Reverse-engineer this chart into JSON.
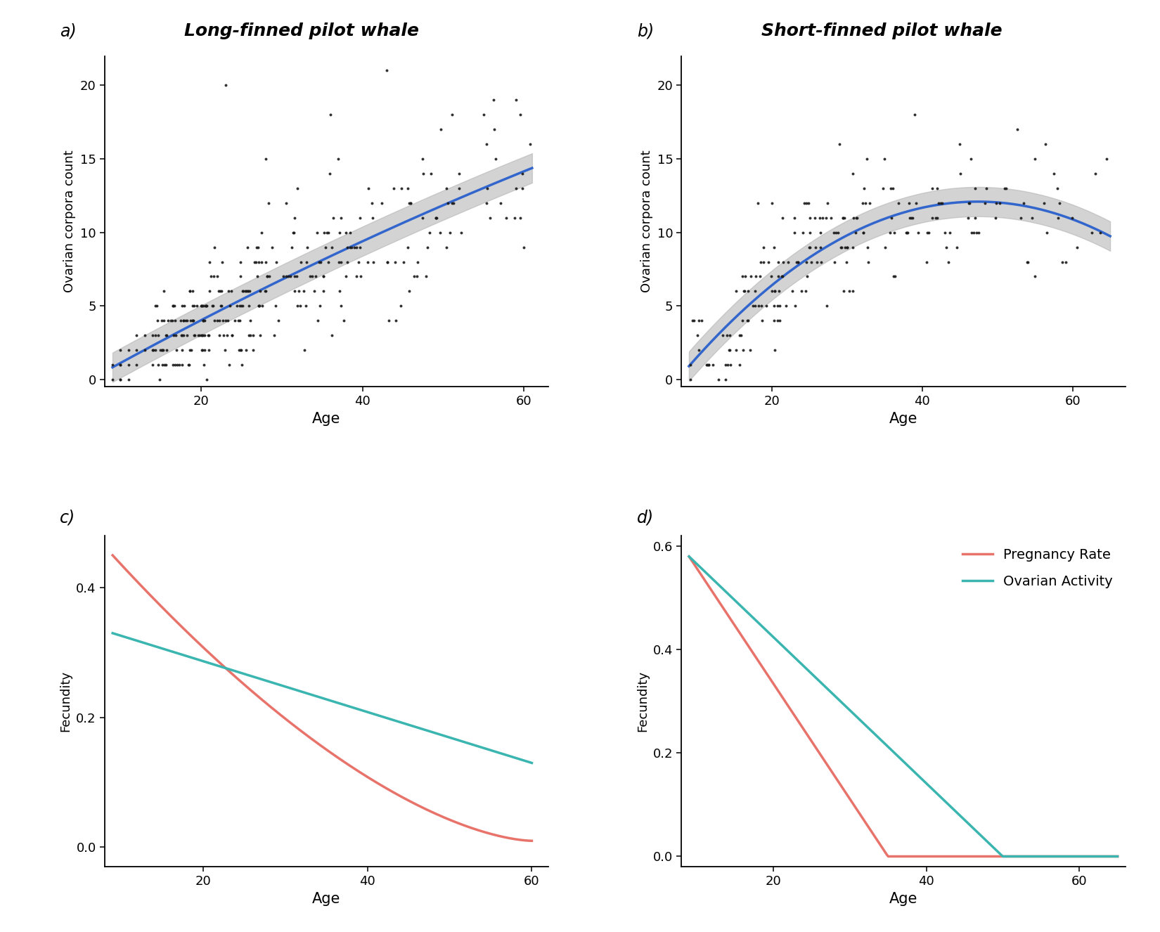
{
  "panel_a_title": "Long-finned pilot whale",
  "panel_b_title": "Short-finned pilot whale",
  "panel_a_label": "a)",
  "panel_b_label": "b)",
  "panel_c_label": "c)",
  "panel_d_label": "d)",
  "scatter_ylabel": "Ovarian corpora count",
  "scatter_xlabel": "Age",
  "fecundity_ylabel": "Fecundity",
  "fecundity_xlabel": "Age",
  "scatter_color": "#1a1a1a",
  "fit_color": "#3366cc",
  "ci_color": "#b0b0b0",
  "pregnancy_color": "#e8736b",
  "ovarian_color": "#3ab5b0",
  "legend_pregnancy": "Pregnancy Rate",
  "legend_ovarian": "Ovarian Activity",
  "panel_a_xlim": [
    8,
    63
  ],
  "panel_a_ylim": [
    -0.5,
    22
  ],
  "panel_b_xlim": [
    8,
    67
  ],
  "panel_b_ylim": [
    -0.5,
    22
  ],
  "panel_c_xlim": [
    8,
    62
  ],
  "panel_c_ylim": [
    -0.03,
    0.48
  ],
  "panel_d_xlim": [
    8,
    66
  ],
  "panel_d_ylim": [
    -0.02,
    0.62
  ],
  "bg_color": "#ffffff",
  "line_width": 2.5,
  "scatter_size": 8
}
